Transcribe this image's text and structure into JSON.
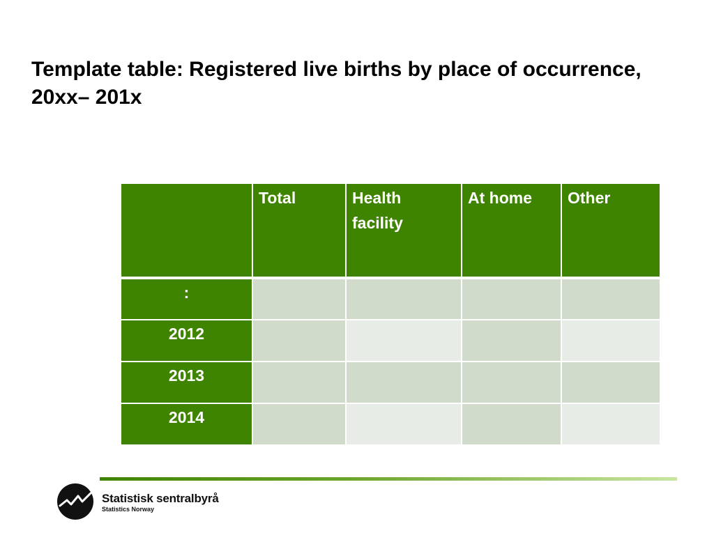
{
  "title": "Template table: Registered live births by place of occurrence, 20xx– 201x",
  "table": {
    "headers": [
      "",
      "Total",
      "Health facility",
      "At home",
      "Other"
    ],
    "rows": [
      {
        "label": ":"
      },
      {
        "label": "2012"
      },
      {
        "label": "2013"
      },
      {
        "label": "2014"
      }
    ]
  },
  "footer": {
    "brand_name": "Statistisk sentralbyrå",
    "brand_sub": "Statistics Norway",
    "logo_icon": "ssb-logo-icon"
  },
  "colors": {
    "header_green": "#3f8400",
    "cell_dark": "#d0dbcb",
    "cell_light": "#e8ece6"
  }
}
